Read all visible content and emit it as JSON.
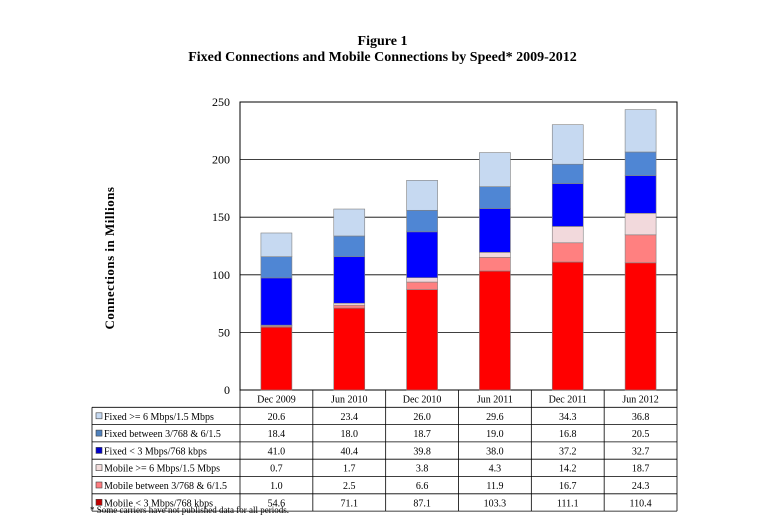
{
  "figure": {
    "label": "Figure 1",
    "title": "Fixed Connections and Mobile Connections by Speed* 2009-2012",
    "footnote": "* Some carriers have not published data for all periods."
  },
  "chart_data": {
    "type": "bar",
    "stacked": true,
    "ylabel": "Connections in Millions",
    "ylim": [
      0,
      250
    ],
    "yticks": [
      0,
      50,
      100,
      150,
      200,
      250
    ],
    "grid": true,
    "legend_placement": "data-table-left",
    "categories": [
      "Dec 2009",
      "Jun 2010",
      "Dec 2010",
      "Jun 2011",
      "Dec 2011",
      "Jun 2012"
    ],
    "series": [
      {
        "name": "Mobile < 3 Mbps/768 kbps",
        "color": "#ff0000",
        "marker": "#c00000",
        "values": [
          54.6,
          71.1,
          87.1,
          103.3,
          111.1,
          110.4
        ]
      },
      {
        "name": "Mobile between 3/768 & 6/1.5",
        "color": "#ff8080",
        "marker": "#ff7c80",
        "values": [
          1.0,
          2.5,
          6.6,
          11.9,
          16.7,
          24.3
        ]
      },
      {
        "name": "Mobile >= 6 Mbps/1.5 Mbps",
        "color": "#f2d9dc",
        "marker": "#f2dcdb",
        "values": [
          0.7,
          1.7,
          3.8,
          4.3,
          14.2,
          18.7
        ]
      },
      {
        "name": "Fixed < 3 Mbps/768 kbps",
        "color": "#0000ff",
        "marker": "#0000cc",
        "values": [
          41.0,
          40.4,
          39.8,
          38.0,
          37.2,
          32.7
        ]
      },
      {
        "name": "Fixed between 3/768 & 6/1.5",
        "color": "#4f86d4",
        "marker": "#4f81bd",
        "values": [
          18.4,
          18.0,
          18.7,
          19.0,
          16.8,
          20.5
        ]
      },
      {
        "name": "Fixed >= 6 Mbps/1.5 Mbps",
        "color": "#c6d9f1",
        "marker": "#c6d9f1",
        "values": [
          20.6,
          23.4,
          26.0,
          29.6,
          34.3,
          36.8
        ]
      }
    ]
  }
}
